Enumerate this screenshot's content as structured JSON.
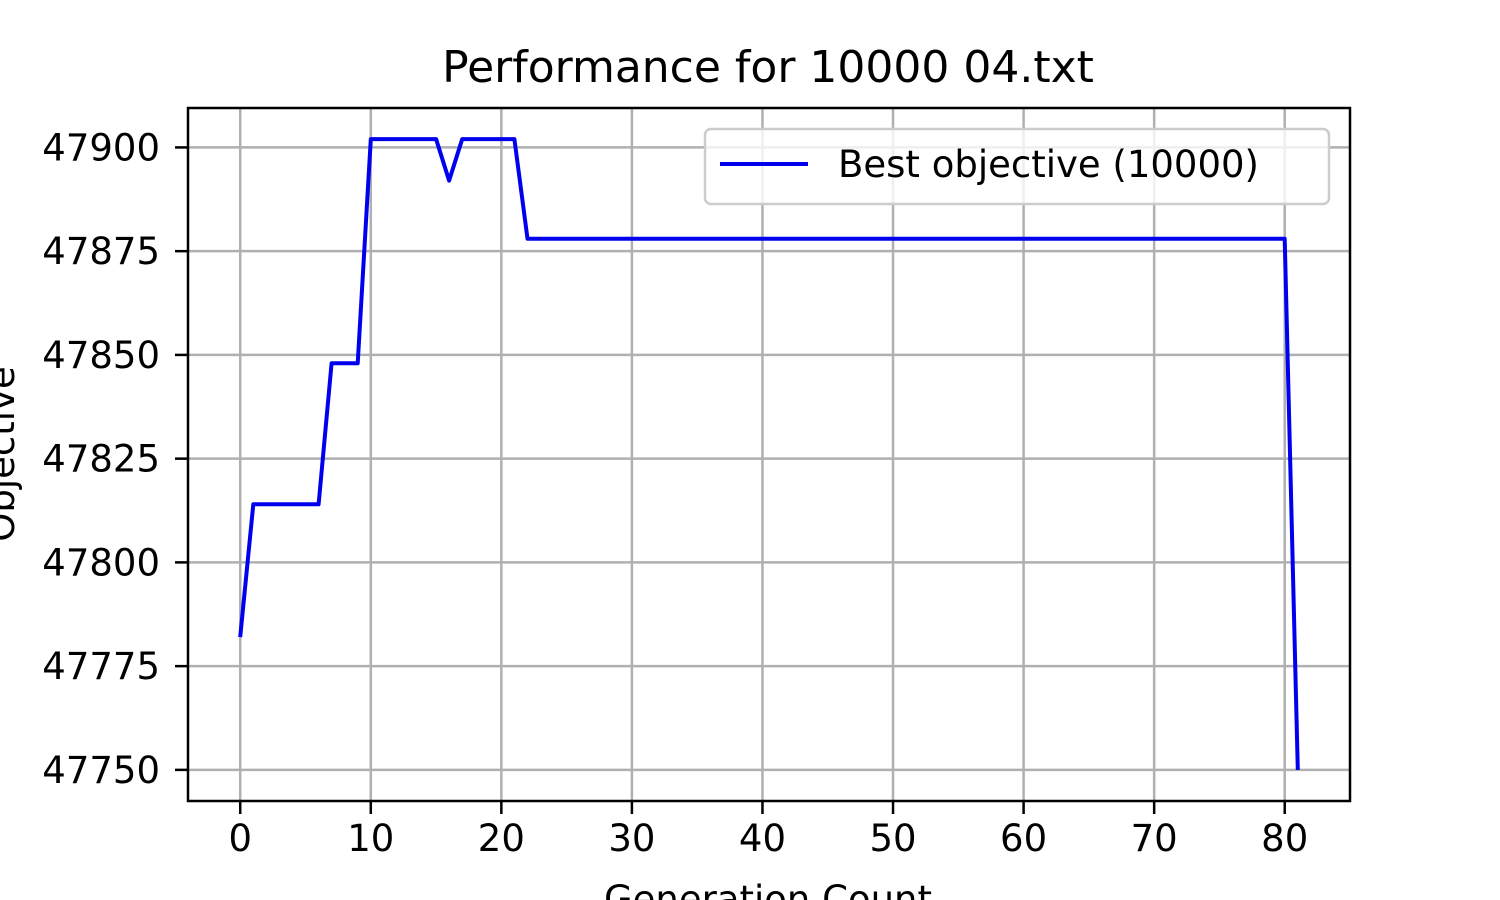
{
  "chart_data": {
    "type": "line",
    "title": "Performance for 10000 04.txt",
    "xlabel": "Generation Count",
    "ylabel": "Objective",
    "xlim": [
      -4,
      85
    ],
    "ylim": [
      47742.5,
      47909.5
    ],
    "xticks": [
      0,
      10,
      20,
      30,
      40,
      50,
      60,
      70,
      80
    ],
    "yticks": [
      47750,
      47775,
      47800,
      47825,
      47850,
      47875,
      47900
    ],
    "grid": true,
    "legend_position": "top-right",
    "series": [
      {
        "name": "Best objective (10000)",
        "color": "#0000ee",
        "x": [
          0,
          1,
          6,
          7,
          9,
          10,
          15,
          16,
          17,
          21,
          22,
          80,
          81
        ],
        "y": [
          47782,
          47814,
          47814,
          47848,
          47848,
          47902,
          47902,
          47892,
          47902,
          47902,
          47878,
          47878,
          47750
        ]
      }
    ]
  }
}
